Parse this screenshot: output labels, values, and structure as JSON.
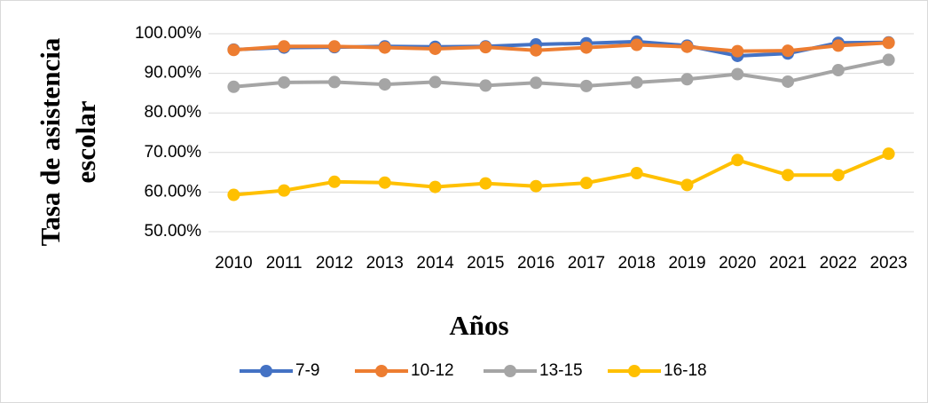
{
  "chart_data": {
    "type": "line",
    "y_label": [
      "Tasa de asistencia",
      "escolar"
    ],
    "x_label": "Años",
    "categories": [
      "2010",
      "2011",
      "2012",
      "2013",
      "2014",
      "2015",
      "2016",
      "2017",
      "2018",
      "2019",
      "2020",
      "2021",
      "2022",
      "2023"
    ],
    "series": [
      {
        "name": "7-9",
        "color": "#4472c4",
        "values": [
          96.0,
          96.5,
          96.6,
          96.8,
          96.7,
          96.8,
          97.3,
          97.6,
          98.0,
          97.0,
          94.4,
          95.0,
          97.7,
          97.8
        ]
      },
      {
        "name": "10-12",
        "color": "#ed7d31",
        "values": [
          95.9,
          96.8,
          96.8,
          96.5,
          96.2,
          96.6,
          95.8,
          96.5,
          97.2,
          96.7,
          95.6,
          95.7,
          97.0,
          97.7
        ]
      },
      {
        "name": "13-15",
        "color": "#a5a5a5",
        "values": [
          86.6,
          87.7,
          87.8,
          87.2,
          87.8,
          86.9,
          87.6,
          86.8,
          87.7,
          88.5,
          89.8,
          87.9,
          90.8,
          93.4
        ]
      },
      {
        "name": "16-18",
        "color": "#ffc000",
        "values": [
          59.3,
          60.4,
          62.6,
          62.4,
          61.3,
          62.2,
          61.5,
          62.3,
          64.8,
          61.8,
          68.1,
          64.3,
          64.3,
          69.7
        ]
      }
    ],
    "ylim": [
      50,
      100
    ],
    "yticks": [
      {
        "value": 50,
        "label": "50.00%"
      },
      {
        "value": 60,
        "label": "60.00%"
      },
      {
        "value": 70,
        "label": "70.00%"
      },
      {
        "value": 80,
        "label": "80.00%"
      },
      {
        "value": 90,
        "label": "90.00%"
      },
      {
        "value": 100,
        "label": "100.00%"
      }
    ],
    "grid": true,
    "legend": "bottom"
  }
}
